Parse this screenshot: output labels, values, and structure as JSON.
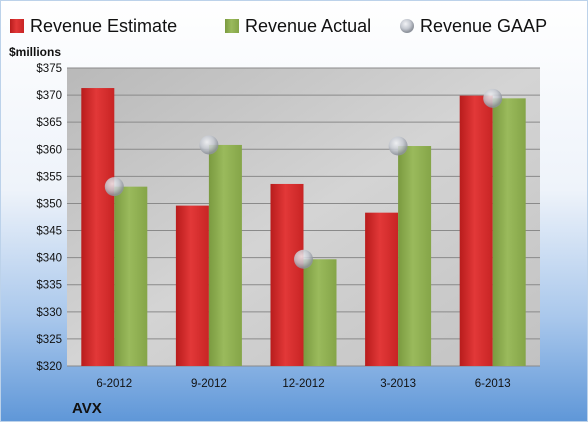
{
  "colors": {
    "estimate": "#d42a2a",
    "actual": "#8aab4c",
    "gaap": "#c4c8d0",
    "plot_bg": "#c9c9c9",
    "grid": "#8a8a8a",
    "frame": "#bcd2ea",
    "bg_top": "#ffffff",
    "bg_bottom": "#5f97d8"
  },
  "chart_data": {
    "type": "bar",
    "title": "",
    "company": "AVX",
    "y_unit_label": "$millions",
    "categories": [
      "6-2012",
      "9-2012",
      "12-2012",
      "3-2013",
      "6-2013"
    ],
    "series": [
      {
        "name": "Revenue Estimate",
        "kind": "bar",
        "values": [
          371.3,
          349.6,
          353.6,
          348.3,
          369.9
        ]
      },
      {
        "name": "Revenue Actual",
        "kind": "bar",
        "values": [
          353.1,
          360.8,
          339.7,
          360.6,
          369.4
        ]
      },
      {
        "name": "Revenue GAAP",
        "kind": "marker",
        "values": [
          353.1,
          360.8,
          339.7,
          360.6,
          369.4
        ]
      }
    ],
    "ylim": [
      320,
      375
    ],
    "yticks": [
      320,
      325,
      330,
      335,
      340,
      345,
      350,
      355,
      360,
      365,
      370,
      375
    ],
    "ytick_labels": [
      "$320",
      "$325",
      "$330",
      "$335",
      "$340",
      "$345",
      "$350",
      "$355",
      "$360",
      "$365",
      "$370",
      "$375"
    ],
    "grid": true,
    "legend_position": "top"
  }
}
